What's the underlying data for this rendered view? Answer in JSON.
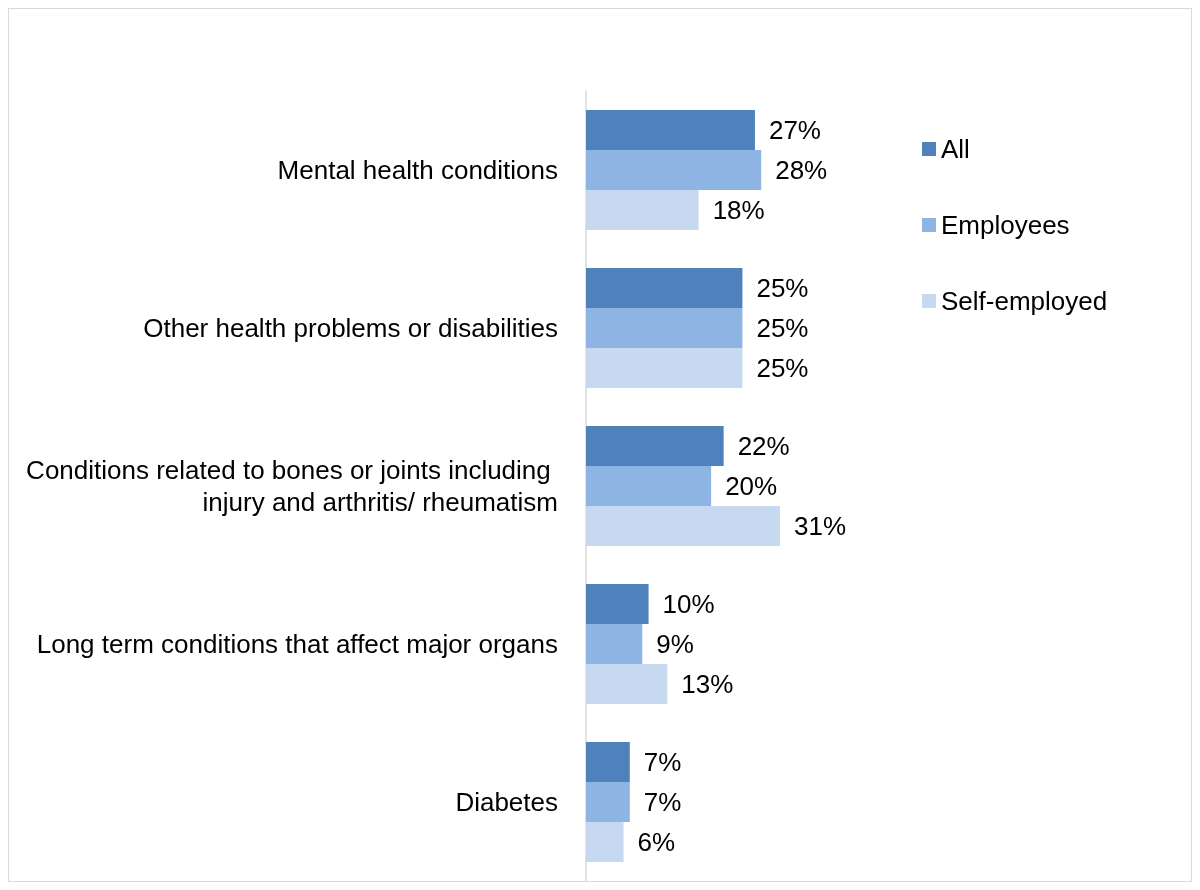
{
  "chart_data": {
    "type": "bar",
    "orientation": "horizontal",
    "categories": [
      "Mental health conditions",
      "Other health problems or disabilities",
      "Conditions related to bones or joints including injury and arthritis/ rheumatism",
      "Long term conditions that affect major organs",
      "Diabetes"
    ],
    "series": [
      {
        "name": "All",
        "color": "#4f81bd",
        "values": [
          27,
          25,
          22,
          10,
          7
        ],
        "value_labels": [
          "27%",
          "25%",
          "22%",
          "10%",
          "7%"
        ]
      },
      {
        "name": "Employees",
        "color": "#8eb4e3",
        "values": [
          28,
          25,
          20,
          9,
          7
        ],
        "value_labels": [
          "28%",
          "25%",
          "20%",
          "9%",
          "7%"
        ]
      },
      {
        "name": "Self-employed",
        "color": "#c6d9f1",
        "values": [
          18,
          25,
          31,
          13,
          6
        ],
        "value_labels": [
          "18%",
          "25%",
          "31%",
          "13%",
          "6%"
        ]
      }
    ],
    "legend": "top right"
  }
}
